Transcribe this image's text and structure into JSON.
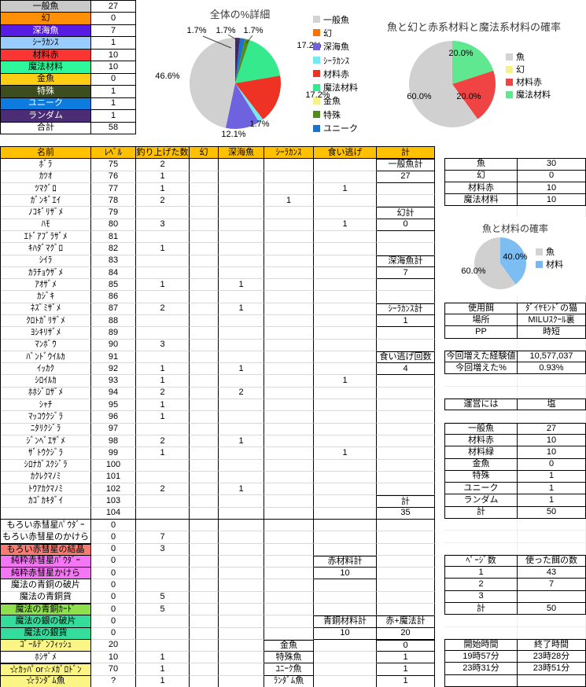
{
  "summary_table": {
    "rows": [
      {
        "label": "一般魚",
        "value": "27",
        "bg": "#C9C9C9",
        "fg": "#000000"
      },
      {
        "label": "幻",
        "value": "0",
        "bg": "#FF8F06",
        "fg": "#000000"
      },
      {
        "label": "深海魚",
        "value": "7",
        "bg": "#571CE3",
        "fg": "#FFFFFF"
      },
      {
        "label": "ｼｰﾗｶﾝｽ",
        "value": "1",
        "bg": "#99CCFF",
        "fg": "#000000"
      },
      {
        "label": "材料赤",
        "value": "10",
        "bg": "#FB3434",
        "fg": "#000000"
      },
      {
        "label": "魔法材料",
        "value": "10",
        "bg": "#2EF89B",
        "fg": "#000000"
      },
      {
        "label": "金魚",
        "value": "0",
        "bg": "#FFCE14",
        "fg": "#000000"
      },
      {
        "label": "特殊",
        "value": "1",
        "bg": "#3E4D20",
        "fg": "#FFFFFF"
      },
      {
        "label": "ユニーク",
        "value": "1",
        "bg": "#0E7CDF",
        "fg": "#FFFFFF"
      },
      {
        "label": "ランダム",
        "value": "1",
        "bg": "#4A2D74",
        "fg": "#FFFFFF"
      },
      {
        "label": "合計",
        "value": "58",
        "bg": "#FFFFFF",
        "fg": "#000000"
      }
    ]
  },
  "chart_data": [
    {
      "type": "pie",
      "title": "全体の%詳細",
      "legend_position": "right",
      "slices": [
        {
          "name": "ランダム",
          "value": 1,
          "pct": 1.7,
          "color": "#3D2A66"
        },
        {
          "name": "ユニーク",
          "value": 1,
          "pct": 1.7,
          "color": "#1C72CF"
        },
        {
          "name": "特殊",
          "value": 1,
          "pct": 1.7,
          "color": "#518D1E"
        },
        {
          "name": "魔法材料",
          "value": 10,
          "pct": 17.2,
          "color": "#36E98C"
        },
        {
          "name": "材料赤",
          "value": 10,
          "pct": 17.2,
          "color": "#EE3324"
        },
        {
          "name": "シーラカンス",
          "value": 1,
          "pct": 1.7,
          "color": "#76E8F0"
        },
        {
          "name": "深海魚",
          "value": 7,
          "pct": 12.1,
          "color": "#6E62DF"
        },
        {
          "name": "一般魚",
          "value": 27,
          "pct": 46.6,
          "color": "#D0D0D0"
        }
      ],
      "legend": [
        {
          "label": "一般魚",
          "color": "#D3D3D3"
        },
        {
          "label": "幻",
          "color": "#F9730D"
        },
        {
          "label": "深海魚",
          "color": "#6E62DF"
        },
        {
          "label": "ｼｰﾗｶﾝｽ",
          "color": "#76E8F0"
        },
        {
          "label": "材料赤",
          "color": "#EE3324"
        },
        {
          "label": "魔法材料",
          "color": "#36E98C"
        },
        {
          "label": "金魚",
          "color": "#F5F28B"
        },
        {
          "label": "特殊",
          "color": "#518D1E"
        },
        {
          "label": "ユニーク",
          "color": "#1C72CF"
        }
      ],
      "labels": [
        "1.7%",
        "1.7%",
        "1.7%",
        "17.2%",
        "17.2%",
        "1.7%",
        "12.1%",
        "46.6%"
      ]
    },
    {
      "type": "pie",
      "title": "魚と幻と赤系材料と魔法系材料の確率",
      "legend_position": "right",
      "slices": [
        {
          "name": "魔法材料",
          "value": 10,
          "pct": 20.0,
          "color": "#5FE88F"
        },
        {
          "name": "材料赤",
          "value": 10,
          "pct": 20.0,
          "color": "#F04343"
        },
        {
          "name": "魚",
          "value": 30,
          "pct": 60.0,
          "color": "#D0D0D0"
        }
      ],
      "legend": [
        {
          "label": "魚",
          "color": "#D3D3D3"
        },
        {
          "label": "幻",
          "color": "#F5F28B"
        },
        {
          "label": "材料赤",
          "color": "#F04343"
        },
        {
          "label": "魔法材料",
          "color": "#5FE88F"
        }
      ],
      "labels": [
        "20.0%",
        "60.0%",
        "20.0%"
      ]
    },
    {
      "type": "pie",
      "title": "魚と材料の確率",
      "legend_position": "right",
      "slices": [
        {
          "name": "材料",
          "value": 20,
          "pct": 40.0,
          "color": "#7CBDF2"
        },
        {
          "name": "魚",
          "value": 30,
          "pct": 60.0,
          "color": "#D0D0D0"
        }
      ],
      "legend": [
        {
          "label": "魚",
          "color": "#D3D3D3"
        },
        {
          "label": "材料",
          "color": "#74B9F4"
        }
      ],
      "labels": [
        "40.0%",
        "60.0%"
      ]
    }
  ],
  "main_table": {
    "headers": [
      "名前",
      "ﾚﾍﾞﾙ",
      "釣り上げた数",
      "幻",
      "深海魚",
      "ｼｰﾗｶﾝｽ",
      "食い逃げ",
      "計"
    ],
    "header_bg": "#FFC000",
    "rows": [
      {
        "c": [
          "ﾎﾞﾗ",
          "75",
          "2",
          "",
          "",
          "",
          "",
          "一般魚計"
        ]
      },
      {
        "c": [
          "ｶﾂｵ",
          "76",
          "1",
          "",
          "",
          "",
          "",
          "27"
        ]
      },
      {
        "c": [
          "ﾂﾏｸﾞﾛ",
          "77",
          "1",
          "",
          "",
          "",
          "1",
          ""
        ]
      },
      {
        "c": [
          "ｶﾞﾝｷﾞｴｲ",
          "78",
          "2",
          "",
          "",
          "1",
          "",
          ""
        ]
      },
      {
        "c": [
          "ﾉｺｷﾞﾘｻﾞﾒ",
          "79",
          "",
          "",
          "",
          "",
          "",
          "幻計"
        ]
      },
      {
        "c": [
          "ﾊﾓ",
          "80",
          "3",
          "",
          "",
          "",
          "1",
          "0"
        ]
      },
      {
        "c": [
          "ｴﾄﾞｱﾌﾞﾗｻﾞﾒ",
          "81",
          "",
          "",
          "",
          "",
          "",
          ""
        ]
      },
      {
        "c": [
          "ｷﾊﾀﾞﾏｸﾞﾛ",
          "82",
          "1",
          "",
          "",
          "",
          "",
          ""
        ]
      },
      {
        "c": [
          "ｼｲﾗ",
          "83",
          "",
          "",
          "",
          "",
          "",
          "深海魚計"
        ]
      },
      {
        "c": [
          "ｶﾗﾁｮｳｻﾞﾒ",
          "84",
          "",
          "",
          "",
          "",
          "",
          "7"
        ]
      },
      {
        "c": [
          "ｱｵｻﾞﾒ",
          "85",
          "1",
          "",
          "1",
          "",
          "",
          ""
        ]
      },
      {
        "c": [
          "ｶｼﾞｷ",
          "86",
          "",
          "",
          "",
          "",
          "",
          ""
        ]
      },
      {
        "c": [
          "ﾈｽﾞﾐｻﾞﾒ",
          "87",
          "2",
          "",
          "1",
          "",
          "",
          "ｼｰﾗｶﾝｽ計"
        ]
      },
      {
        "c": [
          "ｸﾛﾄｶﾞﾘｻﾞﾒ",
          "88",
          "",
          "",
          "",
          "",
          "",
          "1"
        ]
      },
      {
        "c": [
          "ﾖｼｷﾘｻﾞﾒ",
          "89",
          "",
          "",
          "",
          "",
          "",
          ""
        ]
      },
      {
        "c": [
          "ﾏﾝﾎﾞｳ",
          "90",
          "3",
          "",
          "",
          "",
          "",
          ""
        ]
      },
      {
        "c": [
          "ﾊﾞﾝﾄﾞｳｲﾙｶ",
          "91",
          "",
          "",
          "",
          "",
          "",
          "食い逃げ回数"
        ]
      },
      {
        "c": [
          "ｲｯｶｸ",
          "92",
          "1",
          "",
          "1",
          "",
          "",
          "4"
        ]
      },
      {
        "c": [
          "ｼﾛｲﾙｶ",
          "93",
          "1",
          "",
          "",
          "",
          "1",
          ""
        ]
      },
      {
        "c": [
          "ﾎﾎｼﾞﾛｻﾞﾒ",
          "94",
          "2",
          "",
          "2",
          "",
          "",
          ""
        ]
      },
      {
        "c": [
          "ｼｬﾁ",
          "95",
          "1",
          "",
          "",
          "",
          "",
          ""
        ]
      },
      {
        "c": [
          "ﾏｯｺｳｸｼﾞﾗ",
          "96",
          "1",
          "",
          "",
          "",
          "",
          ""
        ]
      },
      {
        "c": [
          "ﾆﾀﾘｸｼﾞﾗ",
          "97",
          "",
          "",
          "",
          "",
          "",
          ""
        ]
      },
      {
        "c": [
          "ｼﾞﾝﾍﾞｴｻﾞﾒ",
          "98",
          "2",
          "",
          "1",
          "",
          "",
          ""
        ]
      },
      {
        "c": [
          "ｻﾞﾄｳｸｼﾞﾗ",
          "99",
          "1",
          "",
          "",
          "",
          "1",
          ""
        ]
      },
      {
        "c": [
          "ｼﾛﾅｶﾞｽｸｼﾞﾗ",
          "100",
          "",
          "",
          "",
          "",
          "",
          ""
        ]
      },
      {
        "c": [
          "ｶｸﾚｸﾏﾉﾐ",
          "101",
          "",
          "",
          "",
          "",
          "",
          ""
        ]
      },
      {
        "c": [
          "ﾄｳｱｶｸﾏﾉﾐ",
          "102",
          "2",
          "",
          "1",
          "",
          "",
          ""
        ]
      },
      {
        "c": [
          "ｶｺﾞｶｷﾀﾞｲ",
          "103",
          "",
          "",
          "",
          "",
          "",
          "計"
        ]
      },
      {
        "c": [
          "",
          "104",
          "",
          "",
          "",
          "",
          "",
          "35"
        ]
      },
      {
        "c": [
          "もろい赤彗星ﾊﾟｳﾀﾞｰ",
          "0",
          "",
          "",
          "",
          "",
          "",
          ""
        ]
      },
      {
        "c": [
          "もろい赤彗星のかけら",
          "0",
          "7",
          "",
          "",
          "",
          "",
          ""
        ]
      },
      {
        "c": [
          "もろい赤彗星の結晶",
          "0",
          "3",
          "",
          "",
          "",
          "",
          ""
        ],
        "bg": "#F97B72"
      },
      {
        "c": [
          "純粋赤彗星ﾊﾟｳﾀﾞｰ",
          "0",
          "",
          "",
          "",
          "",
          "赤材料計",
          ""
        ],
        "bg": "#F576F5"
      },
      {
        "c": [
          "純粋赤彗星かけら",
          "0",
          "",
          "",
          "",
          "",
          "10",
          ""
        ],
        "bg": "#F576F5"
      },
      {
        "c": [
          "魔法の青銅の破片",
          "0",
          "",
          "",
          "",
          "",
          "",
          ""
        ]
      },
      {
        "c": [
          "魔法の青銅貨",
          "0",
          "5",
          "",
          "",
          "",
          "",
          ""
        ]
      },
      {
        "c": [
          "魔法の青銅ｶｰﾄﾞ",
          "0",
          "5",
          "",
          "",
          "",
          "",
          ""
        ],
        "bg": "#8FE04D"
      },
      {
        "c": [
          "魔法の銀の破片",
          "0",
          "",
          "",
          "",
          "",
          "青銅材料計",
          "赤+魔法計"
        ],
        "bg": "#34DD9B"
      },
      {
        "c": [
          "魔法の銀貨",
          "0",
          "",
          "",
          "",
          "",
          "10",
          "20"
        ],
        "bg": "#34DD9B"
      },
      {
        "c": [
          "ｺﾞｰﾙﾃﾞﾝﾌｨｯｼｭ",
          "20",
          "",
          "",
          "",
          "金魚",
          "",
          "0"
        ],
        "bg": "#FAF584"
      },
      {
        "c": [
          "ﾎｼｻﾞﾒ",
          "10",
          "1",
          "",
          "",
          "特殊魚",
          "",
          "1"
        ]
      },
      {
        "c": [
          "☆ｶｯﾊﾟor☆ﾒｶﾞﾛﾄﾞﾝ",
          "70",
          "1",
          "",
          "",
          "ﾕﾆｰｸ魚",
          "",
          "1"
        ],
        "bg": "#FAF584"
      },
      {
        "c": [
          "☆ﾗﾝﾀﾞﾑ魚",
          "?",
          "1",
          "",
          "",
          "ﾗﾝﾀﾞﾑ魚",
          "",
          "1"
        ],
        "bg": "#FAF584"
      }
    ],
    "boxes": [
      {
        "c": 7,
        "r1": 1,
        "r2": 2
      },
      {
        "c": 7,
        "r1": 5,
        "r2": 6
      },
      {
        "c": 7,
        "r1": 9,
        "r2": 10
      },
      {
        "c": 7,
        "r1": 13,
        "r2": 14
      },
      {
        "c": 7,
        "r1": 17,
        "r2": 18
      },
      {
        "c": 7,
        "r1": 29,
        "r2": 30
      },
      {
        "c": 6,
        "r1": 34,
        "r2": 35
      },
      {
        "c": 6,
        "r1": 39,
        "r2": 40
      },
      {
        "c": 7,
        "r1": 39,
        "r2": 40
      },
      {
        "c": 5,
        "r1": 41,
        "r2": 44
      },
      {
        "c": 7,
        "r1": 41,
        "r2": 44
      }
    ],
    "section_rows": [
      30
    ]
  },
  "right_panel": {
    "rows": [
      {
        "r": 1,
        "label": "魚",
        "value": "30",
        "box": true
      },
      {
        "r": 2,
        "label": "幻",
        "value": "0",
        "box": true
      },
      {
        "r": 3,
        "label": "材料赤",
        "value": "10",
        "box": true
      },
      {
        "r": 4,
        "label": "魔法材料",
        "value": "10",
        "box": true
      },
      {
        "r": 5,
        "label": "",
        "value": "",
        "box": false
      },
      {
        "r": 6,
        "label": "",
        "value": "",
        "box": false
      },
      {
        "r": 7,
        "label": "",
        "value": "",
        "box": false
      },
      {
        "r": 8,
        "label": "",
        "value": "",
        "box": false
      },
      {
        "r": 9,
        "label": "",
        "value": "",
        "box": false
      },
      {
        "r": 10,
        "label": "",
        "value": "",
        "box": false
      },
      {
        "r": 11,
        "label": "",
        "value": "",
        "box": false
      },
      {
        "r": 12,
        "label": "",
        "value": "",
        "box": false
      },
      {
        "r": 13,
        "label": "使用餌",
        "value": "ﾀﾞｲﾔﾓﾝﾄﾞの猫",
        "box": true
      },
      {
        "r": 14,
        "label": "場所",
        "value": "MILUｽｸｰﾙ裏",
        "box": true
      },
      {
        "r": 15,
        "label": "PP",
        "value": "時短",
        "box": true
      },
      {
        "r": 16,
        "label": "",
        "value": "",
        "box": false
      },
      {
        "r": 17,
        "label": "今回増えた経験値",
        "value": "10,577,037",
        "box": true
      },
      {
        "r": 18,
        "label": "今回増えた%",
        "value": "0.93%",
        "box": true
      },
      {
        "r": 19,
        "label": "",
        "value": "",
        "box": false
      },
      {
        "r": 20,
        "label": "",
        "value": "",
        "box": false
      },
      {
        "r": 21,
        "label": "運営には",
        "value": "塩",
        "box": true
      },
      {
        "r": 22,
        "label": "",
        "value": "",
        "box": false
      },
      {
        "r": 23,
        "label": "一般魚",
        "value": "27",
        "box": true
      },
      {
        "r": 24,
        "label": "材料赤",
        "value": "10",
        "box": true
      },
      {
        "r": 25,
        "label": "材料緑",
        "value": "10",
        "box": true
      },
      {
        "r": 26,
        "label": "金魚",
        "value": "0",
        "box": true
      },
      {
        "r": 27,
        "label": "特殊",
        "value": "1",
        "box": true
      },
      {
        "r": 28,
        "label": "ユニーク",
        "value": "1",
        "box": true
      },
      {
        "r": 29,
        "label": "ランダム",
        "value": "1",
        "box": true
      },
      {
        "r": 30,
        "label": "計",
        "value": "50",
        "box": true
      },
      {
        "r": 31,
        "label": "",
        "value": "",
        "box": false
      },
      {
        "r": 32,
        "label": "",
        "value": "",
        "box": false
      },
      {
        "r": 33,
        "label": "",
        "value": "",
        "box": false
      },
      {
        "r": 34,
        "label": "ﾍﾟｰｼﾞ数",
        "value": "使った餌の数",
        "box": true
      },
      {
        "r": 35,
        "label": "1",
        "value": "43",
        "box": true
      },
      {
        "r": 36,
        "label": "2",
        "value": "7",
        "box": true
      },
      {
        "r": 37,
        "label": "3",
        "value": "",
        "box": true
      },
      {
        "r": 38,
        "label": "計",
        "value": "50",
        "box": true
      },
      {
        "r": 39,
        "label": "",
        "value": "",
        "box": false
      },
      {
        "r": 40,
        "label": "",
        "value": "",
        "box": false
      },
      {
        "r": 41,
        "label": "開始時間",
        "value": "終了時間",
        "box": true
      },
      {
        "r": 42,
        "label": "19時57分",
        "value": "23時28分",
        "box": true
      },
      {
        "r": 43,
        "label": "23時31分",
        "value": "23時51分",
        "box": true
      },
      {
        "r": 44,
        "label": "",
        "value": "",
        "box": true
      }
    ]
  }
}
